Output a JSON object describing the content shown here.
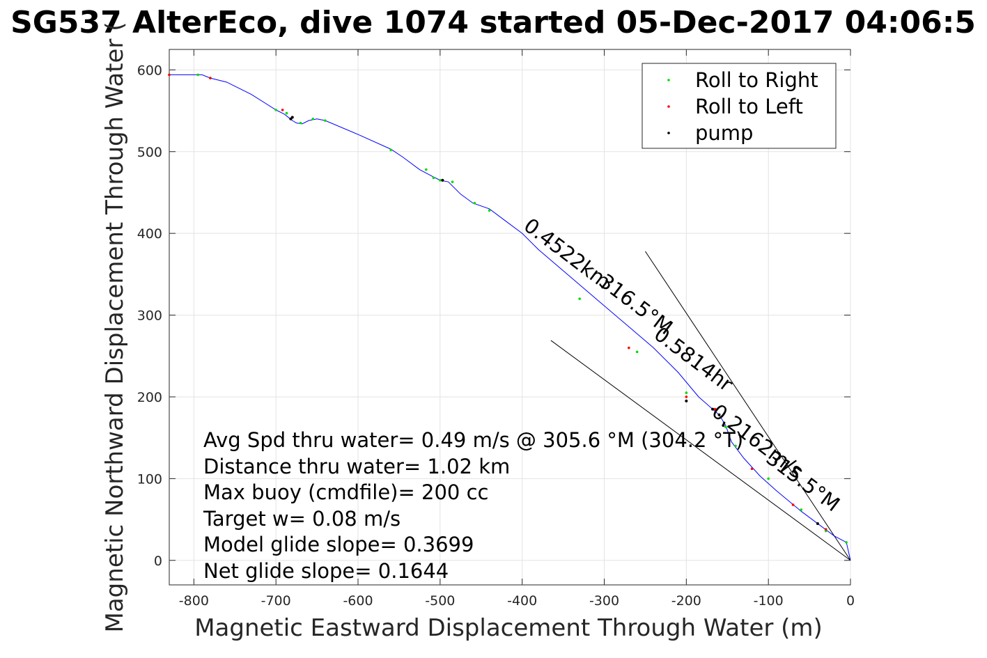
{
  "chart_data": {
    "type": "line",
    "title": "SG537 AlterEco, dive 1074 started 05-Dec-2017 04:06:5",
    "xlabel": "Magnetic Eastward Displacement Through Water (m)",
    "ylabel": "Magnetic Northward Displacement Through Water (",
    "xlim": [
      -830,
      0
    ],
    "ylim": [
      -30,
      625
    ],
    "xticks": [
      -800,
      -700,
      -600,
      -500,
      -400,
      -300,
      -200,
      -100,
      0
    ],
    "yticks": [
      0,
      100,
      200,
      300,
      400,
      500,
      600
    ],
    "grid": true,
    "legend_position": "top-right",
    "colors": {
      "track": "#0000ff",
      "roll_right": "#00dd00",
      "roll_left": "#ff0000",
      "pump": "#000000",
      "magenta": "#dd00dd",
      "annotation_line": "#000000"
    },
    "legend": [
      {
        "label": "Roll to Right",
        "color": "#00dd00"
      },
      {
        "label": "Roll to Left",
        "color": "#ff0000"
      },
      {
        "label": "pump",
        "color": "#000000"
      }
    ],
    "track": {
      "x": [
        0,
        -5,
        -20,
        -40,
        -60,
        -90,
        -110,
        -130,
        -145,
        -152,
        -160,
        -168,
        -185,
        -210,
        -240,
        -275,
        -310,
        -345,
        -380,
        -400,
        -420,
        -440,
        -460,
        -475,
        -490,
        -500,
        -510,
        -525,
        -545,
        -560,
        -600,
        -640,
        -650,
        -660,
        -668,
        -675,
        -680,
        -685,
        -690,
        -700,
        -730,
        -760,
        -780,
        -790,
        -800,
        -830
      ],
      "y": [
        0,
        22,
        30,
        45,
        60,
        85,
        103,
        125,
        145,
        165,
        178,
        185,
        200,
        230,
        260,
        290,
        320,
        350,
        380,
        400,
        415,
        430,
        437,
        448,
        463,
        465,
        470,
        478,
        493,
        503,
        521,
        538,
        540,
        538,
        534,
        535,
        538,
        542,
        546,
        551,
        570,
        585,
        590,
        594,
        594,
        594
      ]
    },
    "roll_right": {
      "x": [
        -5,
        -30,
        -60,
        -100,
        -140,
        -152,
        -200,
        -260,
        -330,
        -440,
        -458,
        -485,
        -500,
        -508,
        -517,
        -560,
        -640,
        -655,
        -670,
        -687,
        -700,
        -780,
        -795,
        -830
      ],
      "y": [
        22,
        36,
        62,
        100,
        140,
        163,
        205,
        255,
        320,
        428,
        437,
        463,
        465,
        468,
        478,
        502,
        538,
        540,
        535,
        547,
        551,
        590,
        594,
        594
      ]
    },
    "roll_left": {
      "x": [
        -30,
        -70,
        -120,
        -165,
        -200,
        -270,
        -692,
        -780,
        -830
      ],
      "y": [
        38,
        68,
        112,
        185,
        200,
        260,
        551,
        590,
        594
      ]
    },
    "pump": {
      "x": [
        -40,
        -155,
        -160,
        -168,
        -200,
        -497,
        -680,
        -682
      ],
      "y": [
        45,
        165,
        178,
        185,
        195,
        465,
        542,
        540
      ]
    },
    "heading_lines": [
      {
        "x": [
          0,
          -250
        ],
        "y": [
          0,
          378
        ]
      },
      {
        "x": [
          0,
          -365
        ],
        "y": [
          0,
          269
        ]
      }
    ],
    "rotated_annotations": [
      "0.4522km",
      "316.5°M",
      "0.5814hr",
      "0.2162m/s",
      "315.5°M"
    ],
    "annotations": [
      "Avg Spd thru water=  0.49 m/s @ 305.6 °M (304.2 °T)",
      "Distance thru water=  1.02 km",
      "Max buoy (cmdfile)= 200 cc",
      "Target w= 0.08 m/s",
      "Model glide slope= 0.3699",
      "Net glide slope= 0.1644"
    ]
  }
}
